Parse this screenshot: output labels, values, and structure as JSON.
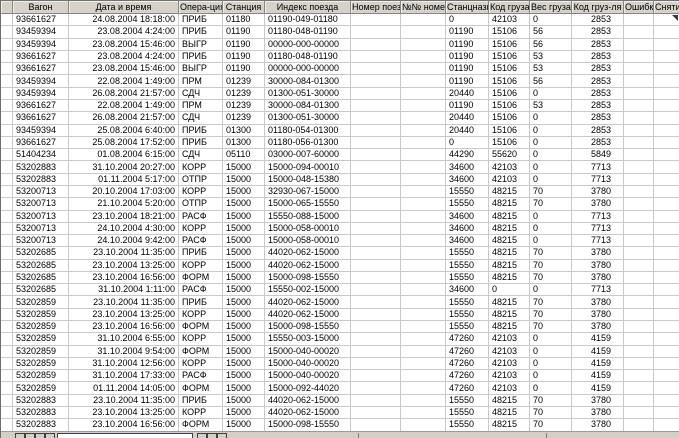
{
  "theme": {
    "header_bg": "#d6d2ca",
    "grid_line": "#c9c9c9",
    "header_border": "#868686",
    "text_color": "#000000",
    "navbar_bg": "#d4d0c8"
  },
  "grid": {
    "columns": [
      {
        "key": "rowmargin",
        "label": ""
      },
      {
        "key": "wagon",
        "label": "Вагон"
      },
      {
        "key": "datetime",
        "label": "Дата и время"
      },
      {
        "key": "operation",
        "label": "Опера-ция"
      },
      {
        "key": "station",
        "label": "Станция"
      },
      {
        "key": "train_index",
        "label": "Индекс поезда"
      },
      {
        "key": "train_number",
        "label": "Номер поезда"
      },
      {
        "key": "nn_number",
        "label": "№№ номер"
      },
      {
        "key": "dest_station",
        "label": "Станцназн"
      },
      {
        "key": "cargo_code",
        "label": "Код груза"
      },
      {
        "key": "cargo_weight",
        "label": "Вес груза"
      },
      {
        "key": "cargo_code_2",
        "label": "Код груз-ля"
      },
      {
        "key": "errors",
        "label": "Ошибки"
      },
      {
        "key": "removal",
        "label": "Снятие"
      }
    ],
    "rows": [
      [
        "93661627",
        "24.08.2004 18:18:00",
        "ПРИБ",
        "01180",
        "01190-049-01180",
        "",
        "",
        "0",
        "42103",
        "0",
        "2853",
        "",
        ""
      ],
      [
        "93459394",
        "23.08.2004 4:24:00",
        "ПРИБ",
        "01190",
        "01180-048-01190",
        "",
        "",
        "01190",
        "15106",
        "56",
        "2853",
        "",
        ""
      ],
      [
        "93459394",
        "23.08.2004 15:46:00",
        "ВЫГР",
        "01190",
        "00000-000-00000",
        "",
        "",
        "01190",
        "15106",
        "56",
        "2853",
        "",
        ""
      ],
      [
        "93661627",
        "23.08.2004 4:24:00",
        "ПРИБ",
        "01190",
        "01180-048-01190",
        "",
        "",
        "01190",
        "15106",
        "53",
        "2853",
        "",
        ""
      ],
      [
        "93661627",
        "23.08.2004 15:46:00",
        "ВЫГР",
        "01190",
        "00000-000-00000",
        "",
        "",
        "01190",
        "15106",
        "53",
        "2853",
        "",
        ""
      ],
      [
        "93459394",
        "22.08.2004 1:49:00",
        "ПРМ",
        "01239",
        "30000-084-01300",
        "",
        "",
        "01190",
        "15106",
        "56",
        "2853",
        "",
        ""
      ],
      [
        "93459394",
        "26.08.2004 21:57:00",
        "СДЧ",
        "01239",
        "01300-051-30000",
        "",
        "",
        "20440",
        "15106",
        "0",
        "2853",
        "",
        ""
      ],
      [
        "93661627",
        "22.08.2004 1:49:00",
        "ПРМ",
        "01239",
        "30000-084-01300",
        "",
        "",
        "01190",
        "15106",
        "53",
        "2853",
        "",
        ""
      ],
      [
        "93661627",
        "26.08.2004 21:57:00",
        "СДЧ",
        "01239",
        "01300-051-30000",
        "",
        "",
        "20440",
        "15106",
        "0",
        "2853",
        "",
        ""
      ],
      [
        "93459394",
        "25.08.2004 6:40:00",
        "ПРИБ",
        "01300",
        "01180-054-01300",
        "",
        "",
        "20440",
        "15106",
        "0",
        "2853",
        "",
        ""
      ],
      [
        "93661627",
        "25.08.2004 17:52:00",
        "ПРИБ",
        "01300",
        "01180-056-01300",
        "",
        "",
        "0",
        "15106",
        "0",
        "2853",
        "",
        ""
      ],
      [
        "51404234",
        "01.08.2004 6:15:00",
        "СДЧ",
        "05110",
        "03000-007-60000",
        "",
        "",
        "44290",
        "55620",
        "0",
        "5849",
        "",
        ""
      ],
      [
        "53202883",
        "31.10.2004 20:27:00",
        "КОРР",
        "15000",
        "15000-094-00010",
        "",
        "",
        "34600",
        "42103",
        "0",
        "7713",
        "",
        ""
      ],
      [
        "53202883",
        "01.11.2004 5:17:00",
        "ОТПР",
        "15000",
        "15000-048-15380",
        "",
        "",
        "34600",
        "42103",
        "0",
        "7713",
        "",
        ""
      ],
      [
        "53200713",
        "20.10.2004 17:03:00",
        "КОРР",
        "15000",
        "32930-067-15000",
        "",
        "",
        "15550",
        "48215",
        "70",
        "3780",
        "",
        ""
      ],
      [
        "53200713",
        "21.10.2004 5:20:00",
        "ОТПР",
        "15000",
        "15000-065-15550",
        "",
        "",
        "15550",
        "48215",
        "70",
        "3780",
        "",
        ""
      ],
      [
        "53200713",
        "23.10.2004 18:21:00",
        "РАСФ",
        "15000",
        "15550-088-15000",
        "",
        "",
        "34600",
        "48215",
        "0",
        "7713",
        "",
        ""
      ],
      [
        "53200713",
        "24.10.2004 4:30:00",
        "КОРР",
        "15000",
        "15000-058-00010",
        "",
        "",
        "34600",
        "48215",
        "0",
        "7713",
        "",
        ""
      ],
      [
        "53200713",
        "24.10.2004 9:42:00",
        "РАСФ",
        "15000",
        "15000-058-00010",
        "",
        "",
        "34600",
        "48215",
        "0",
        "7713",
        "",
        ""
      ],
      [
        "53202685",
        "23.10.2004 11:35:00",
        "ПРИБ",
        "15000",
        "44020-062-15000",
        "",
        "",
        "15550",
        "48215",
        "70",
        "3780",
        "",
        ""
      ],
      [
        "53202685",
        "23.10.2004 13:25:00",
        "КОРР",
        "15000",
        "44020-062-15000",
        "",
        "",
        "15550",
        "48215",
        "70",
        "3780",
        "",
        ""
      ],
      [
        "53202685",
        "23.10.2004 16:56:00",
        "ФОРМ",
        "15000",
        "15000-098-15550",
        "",
        "",
        "15550",
        "48215",
        "70",
        "3780",
        "",
        ""
      ],
      [
        "53202685",
        "31.10.2004 1:11:00",
        "РАСФ",
        "15000",
        "15550-002-15000",
        "",
        "",
        "34600",
        "0",
        "0",
        "7713",
        "",
        ""
      ],
      [
        "53202859",
        "23.10.2004 11:35:00",
        "ПРИБ",
        "15000",
        "44020-062-15000",
        "",
        "",
        "15550",
        "48215",
        "70",
        "3780",
        "",
        ""
      ],
      [
        "53202859",
        "23.10.2004 13:25:00",
        "КОРР",
        "15000",
        "44020-062-15000",
        "",
        "",
        "15550",
        "48215",
        "70",
        "3780",
        "",
        ""
      ],
      [
        "53202859",
        "23.10.2004 16:56:00",
        "ФОРМ",
        "15000",
        "15000-098-15550",
        "",
        "",
        "15550",
        "48215",
        "70",
        "3780",
        "",
        ""
      ],
      [
        "53202859",
        "31.10.2004 6:55:00",
        "КОРР",
        "15000",
        "15550-003-15000",
        "",
        "",
        "47260",
        "42103",
        "0",
        "4159",
        "",
        ""
      ],
      [
        "53202859",
        "31.10.2004 9:54:00",
        "ФОРМ",
        "15000",
        "15000-040-00020",
        "",
        "",
        "47260",
        "42103",
        "0",
        "4159",
        "",
        ""
      ],
      [
        "53202859",
        "31.10.2004 12:56:00",
        "КОРР",
        "15000",
        "15000-040-00020",
        "",
        "",
        "47260",
        "42103",
        "0",
        "4159",
        "",
        ""
      ],
      [
        "53202859",
        "31.10.2004 17:33:00",
        "РАСФ",
        "15000",
        "15000-040-00020",
        "",
        "",
        "47260",
        "42103",
        "0",
        "4159",
        "",
        ""
      ],
      [
        "53202859",
        "01.11.2004 14:05:00",
        "ФОРМ",
        "15000",
        "15000-092-44020",
        "",
        "",
        "47260",
        "42103",
        "0",
        "4159",
        "",
        ""
      ],
      [
        "53202883",
        "23.10.2004 11:35:00",
        "ПРИБ",
        "15000",
        "44020-062-15000",
        "",
        "",
        "15550",
        "48215",
        "70",
        "3780",
        "",
        ""
      ],
      [
        "53202883",
        "23.10.2004 13:25:00",
        "КОРР",
        "15000",
        "44020-062-15000",
        "",
        "",
        "15550",
        "48215",
        "70",
        "3780",
        "",
        ""
      ],
      [
        "53202883",
        "23.10.2004 16:56:00",
        "ФОРМ",
        "15000",
        "15000-098-15550",
        "",
        "",
        "15550",
        "48215",
        "70",
        "3780",
        "",
        ""
      ]
    ]
  }
}
